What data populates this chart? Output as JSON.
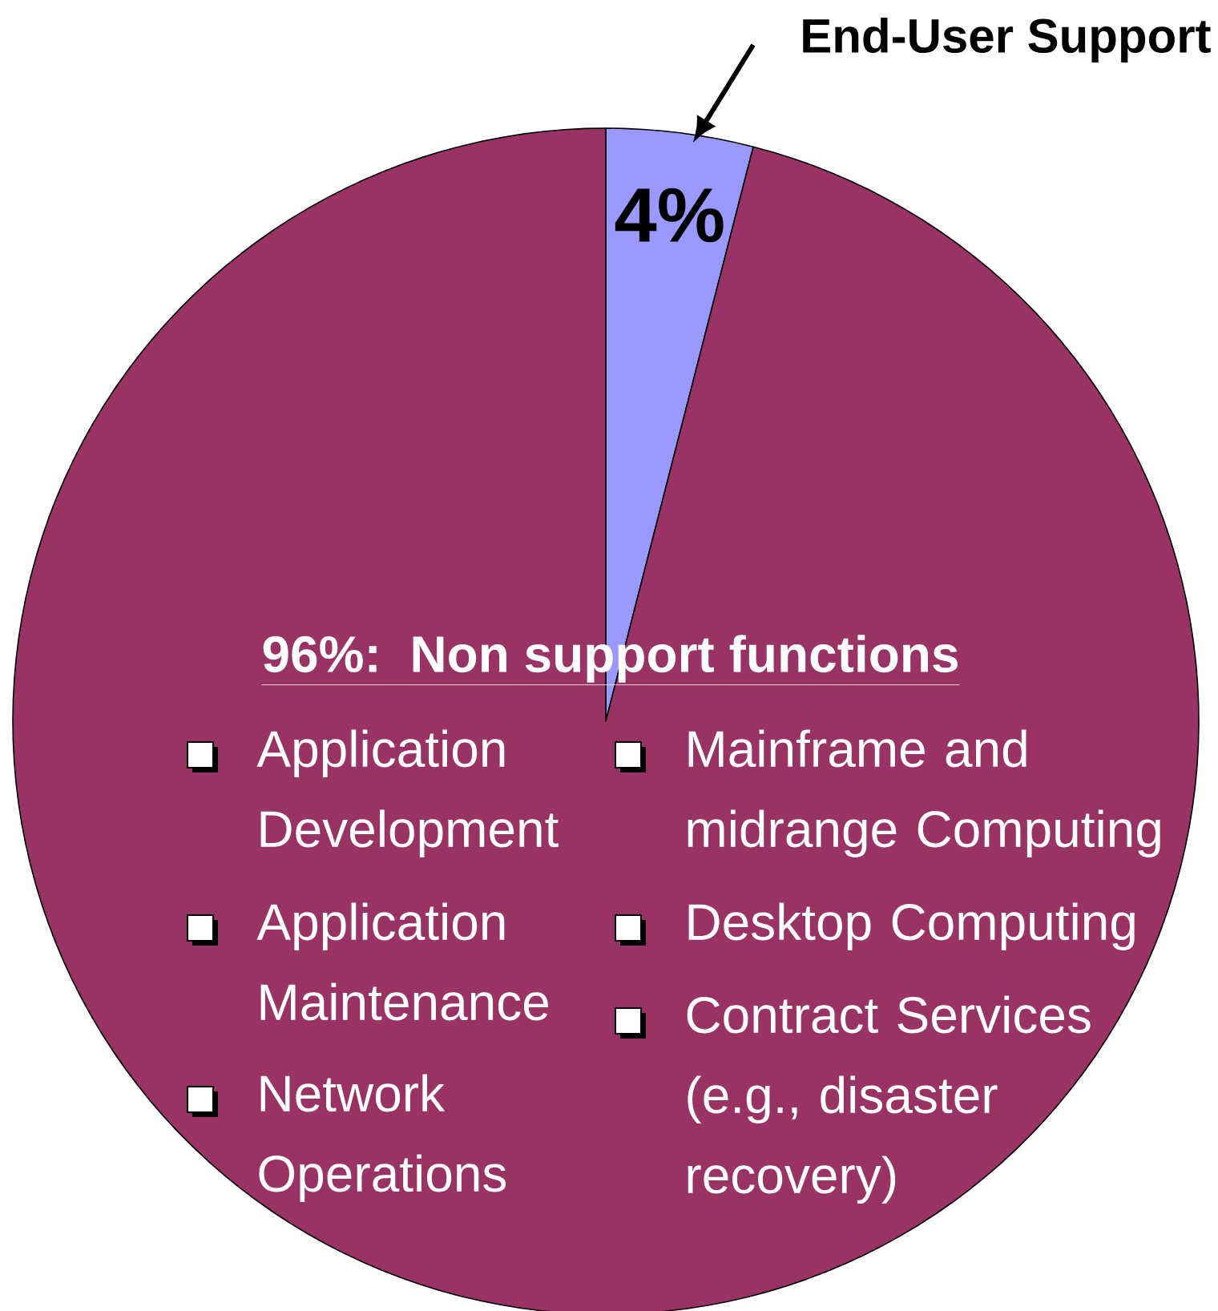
{
  "chart_data": {
    "type": "pie",
    "categories": [
      "End-User Support",
      "Non support functions"
    ],
    "values": [
      4,
      96
    ],
    "colors": [
      "#9999ff",
      "#993366"
    ],
    "value_labels": [
      "4%",
      "96%:"
    ],
    "annotations": [
      "Application Development",
      "Application Maintenance",
      "Network Operations",
      "Mainframe and midrange Computing",
      "Desktop Computing",
      "Contract Services (e.g., disaster recovery)"
    ]
  }
}
